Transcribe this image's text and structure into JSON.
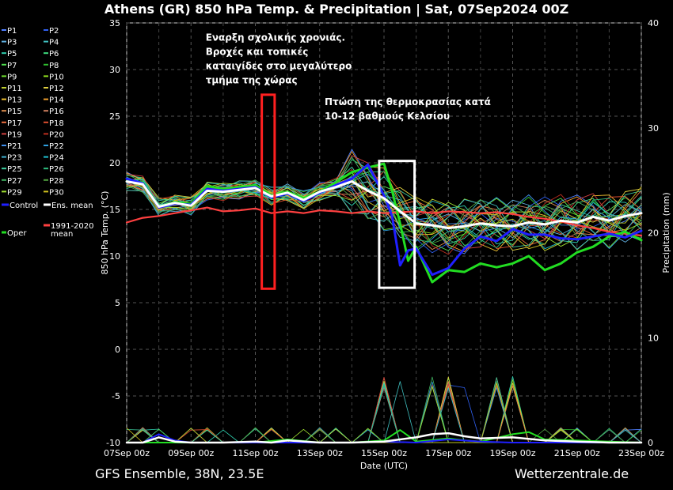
{
  "title": "Athens  (GR)  850 hPa Temp. & Precipitation | Sat, 07Sep2024 00Z",
  "footer": {
    "left": "GFS Ensemble, 38N, 23.5E",
    "right": "Wetterzentrale.de"
  },
  "colors": {
    "control": "#1f1fff",
    "mean": "#ffffff",
    "climate": "#ff4040",
    "oper": "#22dd22"
  },
  "legend": [
    {
      "label": "P1",
      "color": "#4f7fff"
    },
    {
      "label": "P2",
      "color": "#2f5fef"
    },
    {
      "label": "P3",
      "color": "#5fafdf"
    },
    {
      "label": "P4",
      "color": "#3fbfbf"
    },
    {
      "label": "P5",
      "color": "#2fcfaf"
    },
    {
      "label": "P6",
      "color": "#3fdf7f"
    },
    {
      "label": "P7",
      "color": "#4fdf4f"
    },
    {
      "label": "P8",
      "color": "#2fbf2f"
    },
    {
      "label": "P9",
      "color": "#6fdf2f"
    },
    {
      "label": "P10",
      "color": "#8fdf1f"
    },
    {
      "label": "P11",
      "color": "#bfcf2f"
    },
    {
      "label": "P12",
      "color": "#dfcf3f"
    },
    {
      "label": "P13",
      "color": "#efbf2f"
    },
    {
      "label": "P14",
      "color": "#ef9f2f"
    },
    {
      "label": "P15",
      "color": "#df8f4f"
    },
    {
      "label": "P16",
      "color": "#cf7f5f"
    },
    {
      "label": "P17",
      "color": "#ef6f3f"
    },
    {
      "label": "P18",
      "color": "#df4f2f"
    },
    {
      "label": "P19",
      "color": "#cf3f3f"
    },
    {
      "label": "P20",
      "color": "#bf2f1f"
    },
    {
      "label": "P21",
      "color": "#3f8fef"
    },
    {
      "label": "P22",
      "color": "#2f9fdf"
    },
    {
      "label": "P23",
      "color": "#3fafcf"
    },
    {
      "label": "P24",
      "color": "#1fbfcf"
    },
    {
      "label": "P25",
      "color": "#3fcf9f"
    },
    {
      "label": "P26",
      "color": "#2fbf7f"
    },
    {
      "label": "P27",
      "color": "#3faf5f"
    },
    {
      "label": "P28",
      "color": "#4f9f3f"
    },
    {
      "label": "P29",
      "color": "#9fdf2f"
    },
    {
      "label": "P30",
      "color": "#cfbf1f"
    },
    {
      "label": "Control",
      "color": "#1f1fff"
    },
    {
      "label": "Ens. mean",
      "color": "#ffffff"
    },
    {
      "label": "Oper",
      "color": "#22dd22"
    },
    {
      "label": "1991-2020\nmean",
      "color": "#ff4040"
    }
  ],
  "annotations": [
    {
      "text": "Εναρξη σχολικής χρονιάς.\nΒροχές και τοπικές\nκαταιγίδες στο μεγαλύτερο\nτμήμα της χώρας",
      "x_day": 11.3,
      "y_temp": 33.1,
      "color": "#ff2020"
    },
    {
      "text": "Πτώση της θερμοκρασίας κατά\n10-12 βαθμούς Κελσίου",
      "x_day": 15.0,
      "y_temp": 26.2,
      "color": "#ffffff"
    }
  ],
  "chart_data": {
    "type": "line",
    "xlabel": "Date (UTC)",
    "ylabel": "850 hPa Temp. (°C)",
    "y2label": "Precipitation (mm)",
    "ylim": [
      -10,
      35
    ],
    "y2lim": [
      0,
      40
    ],
    "yticks": [
      -10,
      -5,
      0,
      5,
      10,
      15,
      20,
      25,
      30,
      35
    ],
    "y2ticks": [
      0,
      10,
      20,
      30,
      40
    ],
    "xticks": [
      {
        "day": 7,
        "label": "07Sep 00z"
      },
      {
        "day": 9,
        "label": "09Sep 00z"
      },
      {
        "day": 11,
        "label": "11Sep 00z"
      },
      {
        "day": 13,
        "label": "13Sep 00z"
      },
      {
        "day": 15,
        "label": "15Sep 00z"
      },
      {
        "day": 17,
        "label": "17Sep 00z"
      },
      {
        "day": 19,
        "label": "19Sep 00z"
      },
      {
        "day": 21,
        "label": "21Sep 00z"
      },
      {
        "day": 23,
        "label": "23Sep 00z"
      }
    ],
    "xlim": [
      7,
      23
    ],
    "grid": true,
    "highlight_boxes": [
      {
        "x0": 11.2,
        "x1": 11.6,
        "y0": 6.5,
        "y1": 27.3,
        "color": "#ff2020"
      },
      {
        "x0": 14.85,
        "x1": 15.95,
        "y0": 6.6,
        "y1": 20.2,
        "color": "#ffffff"
      }
    ],
    "temp_series": {
      "control": {
        "name": "Control",
        "days": [
          7,
          7.5,
          8,
          8.5,
          9,
          9.5,
          10,
          10.5,
          11,
          11.5,
          12,
          12.5,
          13,
          13.5,
          14,
          14.5,
          15,
          15.25,
          15.5,
          15.75,
          16,
          16.5,
          17,
          17.5,
          18,
          18.5,
          19,
          19.5,
          20,
          20.5,
          21,
          21.5,
          22,
          22.5,
          23
        ],
        "values": [
          18.3,
          17.8,
          15.2,
          15.6,
          15.5,
          17.2,
          17.0,
          17.2,
          17.4,
          16.3,
          16.7,
          15.9,
          16.8,
          17.6,
          18.3,
          19.8,
          16.5,
          14.3,
          9.0,
          10.6,
          10.8,
          8.0,
          8.7,
          10.8,
          12.1,
          11.6,
          12.9,
          12.3,
          12.3,
          11.9,
          11.8,
          12.1,
          12.4,
          12.0,
          12.7
        ]
      },
      "ens_mean": {
        "name": "Ens. mean",
        "days": [
          7,
          7.5,
          8,
          8.5,
          9,
          9.5,
          10,
          10.5,
          11,
          11.5,
          12,
          12.5,
          13,
          13.5,
          14,
          14.5,
          15,
          15.5,
          16,
          16.5,
          17,
          17.5,
          18,
          18.5,
          19,
          19.5,
          20,
          20.5,
          21,
          21.5,
          22,
          22.5,
          23
        ],
        "values": [
          18.0,
          17.7,
          15.3,
          15.7,
          15.4,
          17.0,
          16.9,
          17.1,
          17.3,
          16.4,
          16.8,
          16.0,
          16.9,
          17.4,
          18.0,
          17.0,
          16.2,
          14.8,
          13.5,
          13.3,
          13.0,
          13.2,
          13.5,
          13.3,
          13.2,
          13.6,
          13.4,
          13.8,
          13.6,
          14.2,
          13.8,
          14.3,
          14.6
        ]
      },
      "oper": {
        "name": "Oper",
        "days": [
          7,
          7.5,
          8,
          8.5,
          9,
          9.5,
          10,
          10.5,
          11,
          11.5,
          12,
          12.5,
          13,
          13.5,
          14,
          14.5,
          15,
          15.25,
          15.5,
          15.75,
          16,
          16.5,
          17,
          17.5,
          18,
          18.5,
          19,
          19.5,
          20,
          20.5,
          21,
          21.5,
          22,
          22.5,
          23
        ],
        "values": [
          18.0,
          17.9,
          15.3,
          15.8,
          15.6,
          17.5,
          17.2,
          17.4,
          17.6,
          16.5,
          16.9,
          16.2,
          16.9,
          17.9,
          19.0,
          19.5,
          19.9,
          17.0,
          13.5,
          9.5,
          11.0,
          7.2,
          8.5,
          8.3,
          9.2,
          8.8,
          9.2,
          10.0,
          8.5,
          9.2,
          10.4,
          11.0,
          12.1,
          12.6,
          11.7
        ]
      },
      "climate": {
        "name": "1991-2020 mean",
        "days": [
          7,
          7.5,
          8,
          8.5,
          9,
          9.5,
          10,
          10.5,
          11,
          11.5,
          12,
          12.5,
          13,
          13.5,
          14,
          14.5,
          15,
          15.5,
          16,
          16.5,
          17,
          17.5,
          18,
          18.5,
          19,
          19.5,
          20,
          20.5,
          21,
          21.5,
          22,
          22.5,
          23
        ],
        "values": [
          13.6,
          14.1,
          14.3,
          14.6,
          14.9,
          15.2,
          14.8,
          14.9,
          15.1,
          14.6,
          14.8,
          14.6,
          14.9,
          14.8,
          14.6,
          14.8,
          14.6,
          14.7,
          14.8,
          14.6,
          14.8,
          14.7,
          14.6,
          14.7,
          14.5,
          14.2,
          14.0,
          13.7,
          13.3,
          13.0,
          12.6,
          12.4,
          12.2
        ]
      }
    },
    "precip_series": {
      "ens_mean": {
        "name": "Ens. mean",
        "days": [
          7,
          7.5,
          8,
          8.5,
          9,
          10,
          11,
          11.5,
          12,
          13,
          14,
          15,
          15.5,
          16,
          16.5,
          17,
          17.5,
          18,
          19,
          20,
          21,
          22,
          23
        ],
        "values": [
          0,
          0,
          0.5,
          0.1,
          0,
          0,
          0.1,
          0,
          0.2,
          0,
          0,
          0.1,
          0.3,
          0.5,
          0.8,
          0.9,
          0.6,
          0.4,
          0.5,
          0.2,
          0.1,
          0,
          0
        ]
      },
      "control": {
        "name": "Control",
        "days": [
          7,
          7.5,
          8,
          8.5,
          9,
          10,
          11,
          12,
          13,
          14,
          15,
          16,
          17,
          18,
          19,
          20,
          21,
          22,
          23
        ],
        "values": [
          0,
          0,
          0.8,
          0.2,
          0,
          0,
          0,
          0,
          0,
          0,
          0.1,
          0,
          0.3,
          0.1,
          0,
          0,
          0,
          0,
          0
        ]
      },
      "oper": {
        "name": "Oper",
        "days": [
          7,
          7.5,
          8,
          8.5,
          9,
          10,
          11,
          12,
          13,
          14,
          15,
          15.5,
          16,
          17,
          17.5,
          18,
          19,
          19.5,
          20,
          21,
          22,
          23
        ],
        "values": [
          0,
          0,
          0,
          0,
          0,
          0,
          0,
          0.3,
          0,
          0,
          0.2,
          1.2,
          0.1,
          0.4,
          0.2,
          0.1,
          0.8,
          1.0,
          0.3,
          0.2,
          0.1,
          0
        ]
      }
    }
  }
}
